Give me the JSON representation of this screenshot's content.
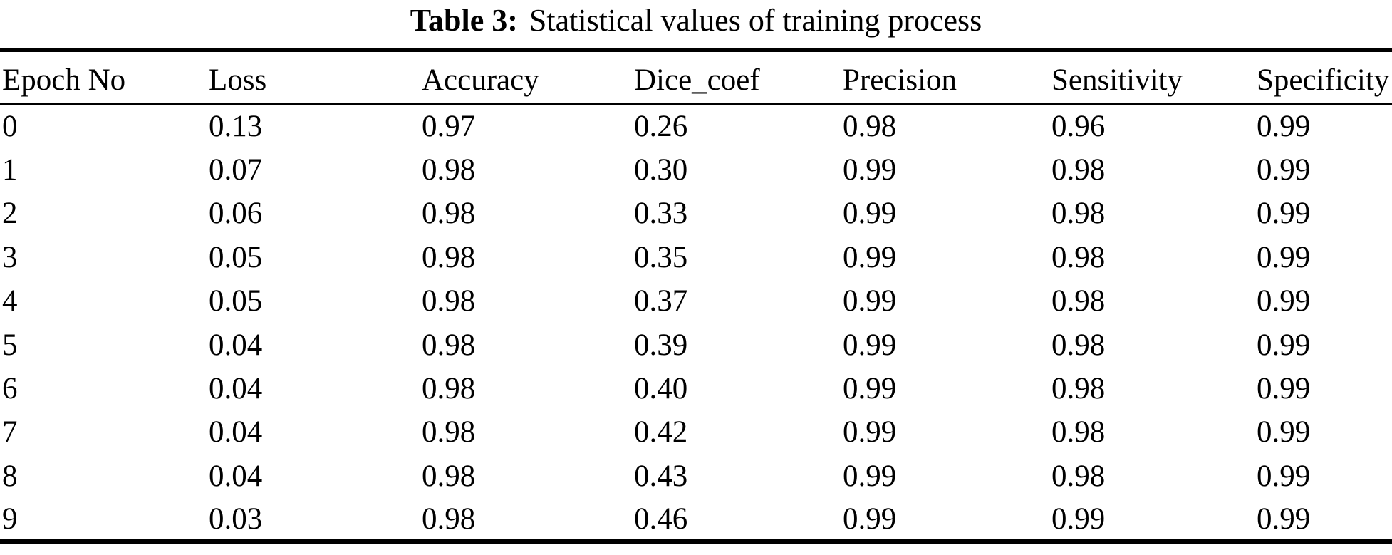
{
  "caption": {
    "label": "Table 3:",
    "text": "Statistical values of training process"
  },
  "chart_data": {
    "type": "table",
    "title": "Table 3: Statistical values of training process",
    "columns": [
      "Epoch No",
      "Loss",
      "Accuracy",
      "Dice_coef",
      "Precision",
      "Sensitivity",
      "Specificity"
    ],
    "rows": [
      [
        "0",
        "0.13",
        "0.97",
        "0.26",
        "0.98",
        "0.96",
        "0.99"
      ],
      [
        "1",
        "0.07",
        "0.98",
        "0.30",
        "0.99",
        "0.98",
        "0.99"
      ],
      [
        "2",
        "0.06",
        "0.98",
        "0.33",
        "0.99",
        "0.98",
        "0.99"
      ],
      [
        "3",
        "0.05",
        "0.98",
        "0.35",
        "0.99",
        "0.98",
        "0.99"
      ],
      [
        "4",
        "0.05",
        "0.98",
        "0.37",
        "0.99",
        "0.98",
        "0.99"
      ],
      [
        "5",
        "0.04",
        "0.98",
        "0.39",
        "0.99",
        "0.98",
        "0.99"
      ],
      [
        "6",
        "0.04",
        "0.98",
        "0.40",
        "0.99",
        "0.98",
        "0.99"
      ],
      [
        "7",
        "0.04",
        "0.98",
        "0.42",
        "0.99",
        "0.98",
        "0.99"
      ],
      [
        "8",
        "0.04",
        "0.98",
        "0.43",
        "0.99",
        "0.98",
        "0.99"
      ],
      [
        "9",
        "0.03",
        "0.98",
        "0.46",
        "0.99",
        "0.99",
        "0.99"
      ]
    ]
  },
  "colors": {
    "background": "#ffffff",
    "text": "#000000",
    "rule": "#000000"
  }
}
